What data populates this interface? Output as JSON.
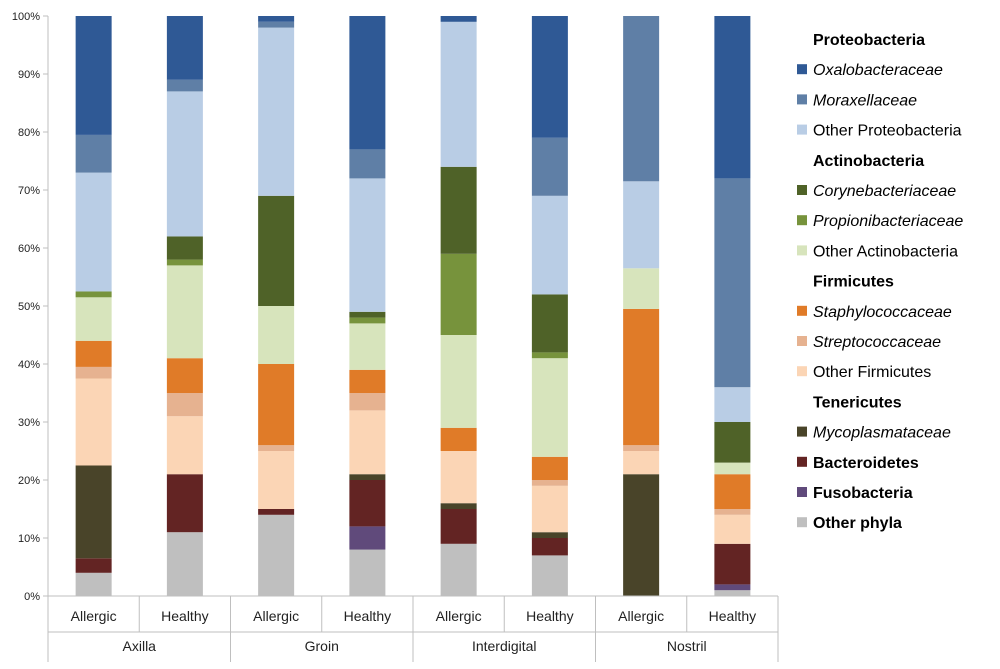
{
  "chart_data": {
    "type": "stacked-bar",
    "title": "",
    "xlabel": "",
    "ylabel": "",
    "ylim": [
      0,
      100
    ],
    "y_ticks": [
      "0%",
      "10%",
      "20%",
      "30%",
      "40%",
      "50%",
      "60%",
      "70%",
      "80%",
      "90%",
      "100%"
    ],
    "grid": false,
    "legend_position": "right",
    "groups": [
      {
        "label": "Axilla",
        "categories": [
          "Allergic",
          "Healthy"
        ]
      },
      {
        "label": "Groin",
        "categories": [
          "Allergic",
          "Healthy"
        ]
      },
      {
        "label": "Interdigital",
        "categories": [
          "Allergic",
          "Healthy"
        ]
      },
      {
        "label": "Nostril",
        "categories": [
          "Allergic",
          "Healthy"
        ]
      }
    ],
    "categories": [
      "Axilla Allergic",
      "Axilla Healthy",
      "Groin Allergic",
      "Groin Healthy",
      "Interdigital Allergic",
      "Interdigital Healthy",
      "Nostril Allergic",
      "Nostril Healthy"
    ],
    "series": [
      {
        "name": "Other phyla",
        "color": "#bfbfbf",
        "values": [
          4,
          11,
          14,
          8,
          9,
          7,
          0,
          1
        ]
      },
      {
        "name": "Fusobacteria",
        "color": "#604a7b",
        "values": [
          0,
          0,
          0,
          4,
          0,
          0,
          0,
          1
        ]
      },
      {
        "name": "Bacteroidetes",
        "color": "#632423",
        "values": [
          2.5,
          10,
          1,
          8,
          6,
          3,
          0,
          7
        ]
      },
      {
        "name": "Mycoplasmataceae",
        "color": "#494429",
        "values": [
          16,
          0,
          0,
          1,
          1,
          1,
          21,
          0
        ]
      },
      {
        "name": "Other Firmicutes",
        "color": "#fbd5b5",
        "values": [
          15,
          10,
          10,
          11,
          9,
          8,
          4,
          5
        ]
      },
      {
        "name": "Streptococcaceae",
        "color": "#e6b290",
        "values": [
          2,
          4,
          1,
          3,
          0,
          1,
          1,
          1
        ]
      },
      {
        "name": "Staphylococcaceae",
        "color": "#e07b28",
        "values": [
          4.5,
          6,
          14,
          4,
          4,
          4,
          23.5,
          6
        ]
      },
      {
        "name": "Other Actinobacteria",
        "color": "#d7e4bc",
        "values": [
          7.5,
          16,
          10,
          8,
          16,
          17,
          7,
          2
        ]
      },
      {
        "name": "Propionibacteriaceae",
        "color": "#77933c",
        "values": [
          1,
          1,
          0,
          1,
          14,
          1,
          0,
          0
        ]
      },
      {
        "name": "Corynebacteriaceae",
        "color": "#4f6228",
        "values": [
          0,
          4,
          19,
          1,
          15,
          10,
          0,
          7
        ]
      },
      {
        "name": "Other Proteobacteria",
        "color": "#b9cde5",
        "values": [
          20.5,
          25,
          29,
          23,
          25,
          17,
          15,
          6
        ]
      },
      {
        "name": "Moraxellaceae",
        "color": "#5f7fa6",
        "values": [
          6.5,
          2,
          1,
          5,
          0,
          10,
          28.5,
          36
        ]
      },
      {
        "name": "Oxalobacteraceae",
        "color": "#2f5995",
        "values": [
          20.5,
          11,
          1,
          23,
          1,
          21,
          0,
          28
        ]
      }
    ],
    "legend": [
      {
        "text": "Proteobacteria",
        "header": true
      },
      {
        "text": "Oxalobacteraceae",
        "color": "#2f5995",
        "italic": true
      },
      {
        "text": "Moraxellaceae",
        "color": "#5f7fa6",
        "italic": true
      },
      {
        "text": "Other Proteobacteria",
        "color": "#b9cde5"
      },
      {
        "text": "Actinobacteria",
        "header": true
      },
      {
        "text": "Corynebacteriaceae",
        "color": "#4f6228",
        "italic": true
      },
      {
        "text": "Propionibacteriaceae",
        "color": "#77933c",
        "italic": true
      },
      {
        "text": "Other Actinobacteria",
        "color": "#d7e4bc"
      },
      {
        "text": "Firmicutes",
        "header": true
      },
      {
        "text": "Staphylococcaceae",
        "color": "#e07b28",
        "italic": true
      },
      {
        "text": "Streptococcaceae",
        "color": "#e6b290",
        "italic": true
      },
      {
        "text": "Other Firmicutes",
        "color": "#fbd5b5"
      },
      {
        "text": "Tenericutes",
        "header": true
      },
      {
        "text": "Mycoplasmataceae",
        "color": "#494429",
        "italic": true
      },
      {
        "text": "Bacteroidetes",
        "color": "#632423",
        "header": true
      },
      {
        "text": "Fusobacteria",
        "color": "#604a7b",
        "header": true
      },
      {
        "text": "Other phyla",
        "color": "#bfbfbf",
        "header": true
      }
    ]
  }
}
